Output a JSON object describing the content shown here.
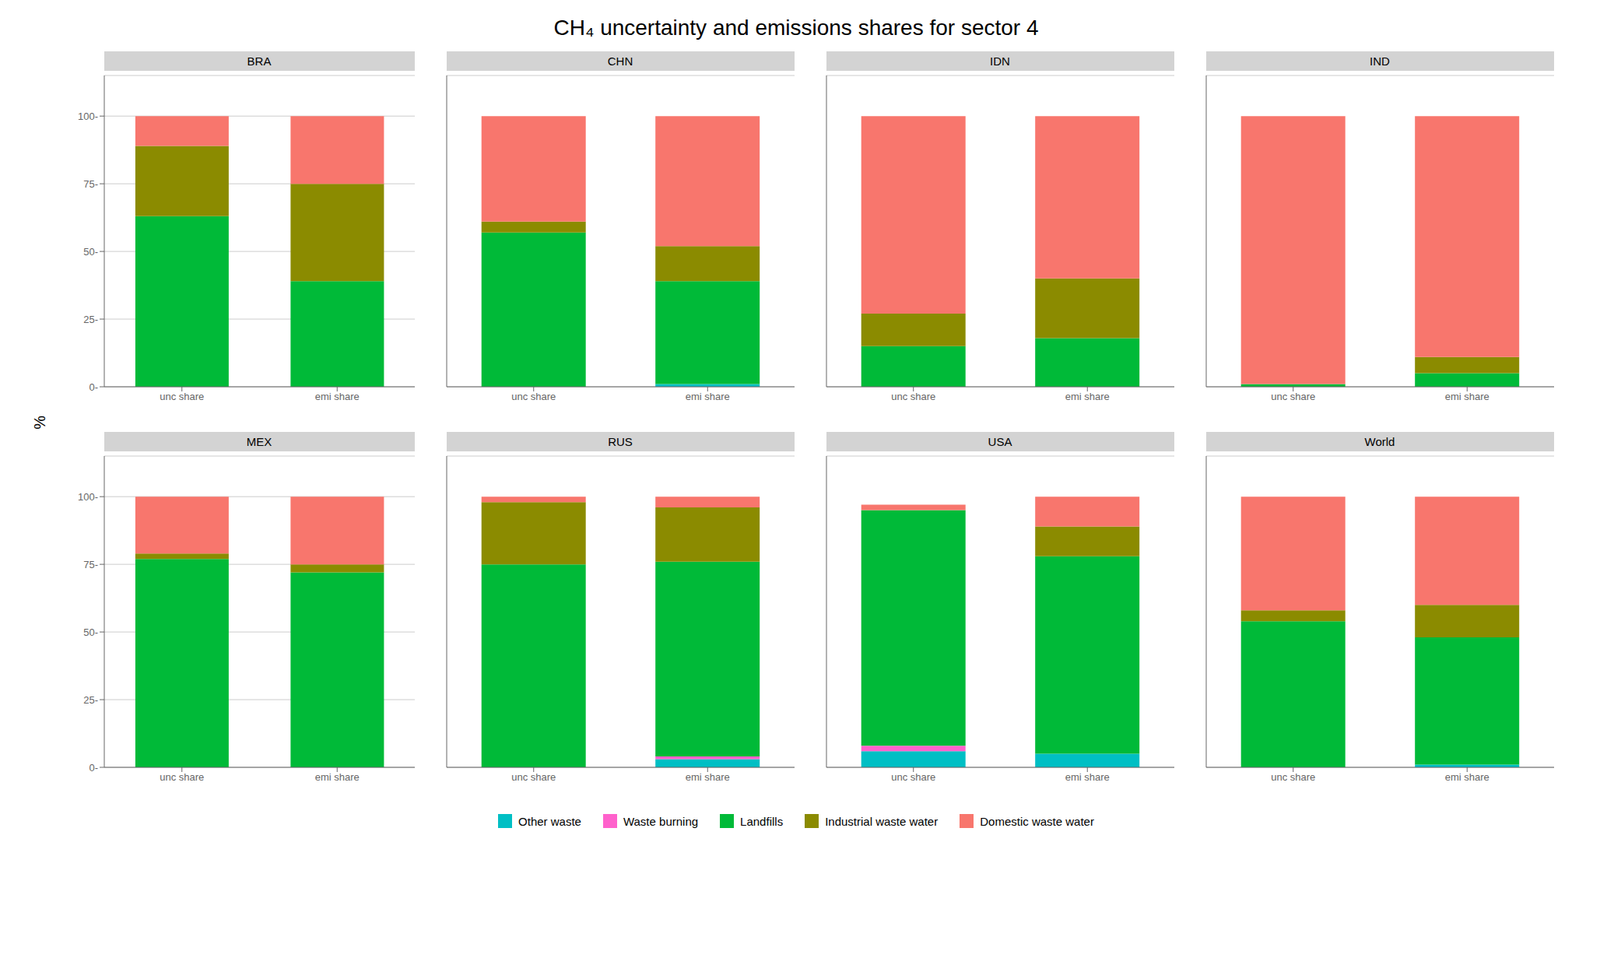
{
  "title": "CH₄ uncertainty and emissions shares for sector 4",
  "ylabel": "%",
  "chart_data": [
    {
      "type": "bar",
      "title": "BRA",
      "stacked": true,
      "grid": true,
      "categories": [
        "unc share",
        "emi share"
      ],
      "ylim": [
        0,
        115
      ],
      "yticks": [
        {
          "value": 0,
          "label": "0-"
        },
        {
          "value": 25,
          "label": "25-"
        },
        {
          "value": 50,
          "label": "50-"
        },
        {
          "value": 75,
          "label": "75-"
        },
        {
          "value": 100,
          "label": "100-"
        }
      ],
      "series": [
        {
          "name": "Other waste",
          "color": "#00BFC4",
          "values": [
            0,
            0
          ]
        },
        {
          "name": "Waste burning",
          "color": "#FF61CC",
          "values": [
            0,
            0
          ]
        },
        {
          "name": "Landfills",
          "color": "#00BA38",
          "values": [
            63,
            39
          ]
        },
        {
          "name": "Industrial waste water",
          "color": "#8B8B00",
          "values": [
            26,
            36
          ]
        },
        {
          "name": "Domestic waste water",
          "color": "#F8766D",
          "values": [
            11,
            25
          ]
        }
      ]
    },
    {
      "type": "bar",
      "title": "CHN",
      "stacked": true,
      "grid": true,
      "tick_labels": "x",
      "categories": [
        "unc share",
        "emi share"
      ],
      "ylim": [
        0,
        115
      ],
      "yticks": [
        0,
        25,
        50,
        75,
        100
      ],
      "series": [
        {
          "name": "Other waste",
          "color": "#00BFC4",
          "values": [
            0,
            1
          ]
        },
        {
          "name": "Waste burning",
          "color": "#FF61CC",
          "values": [
            0,
            0
          ]
        },
        {
          "name": "Landfills",
          "color": "#00BA38",
          "values": [
            57,
            38
          ]
        },
        {
          "name": "Industrial waste water",
          "color": "#8B8B00",
          "values": [
            4,
            13
          ]
        },
        {
          "name": "Domestic waste water",
          "color": "#F8766D",
          "values": [
            39,
            48
          ]
        }
      ]
    },
    {
      "type": "bar",
      "title": "IDN",
      "stacked": true,
      "grid": true,
      "tick_labels": "x",
      "categories": [
        "unc share",
        "emi share"
      ],
      "ylim": [
        0,
        115
      ],
      "yticks": [
        0,
        25,
        50,
        75,
        100
      ],
      "series": [
        {
          "name": "Other waste",
          "color": "#00BFC4",
          "values": [
            0,
            0
          ]
        },
        {
          "name": "Waste burning",
          "color": "#FF61CC",
          "values": [
            0,
            0
          ]
        },
        {
          "name": "Landfills",
          "color": "#00BA38",
          "values": [
            15,
            18
          ]
        },
        {
          "name": "Industrial waste water",
          "color": "#8B8B00",
          "values": [
            12,
            22
          ]
        },
        {
          "name": "Domestic waste water",
          "color": "#F8766D",
          "values": [
            73,
            60
          ]
        }
      ]
    },
    {
      "type": "bar",
      "title": "IND",
      "stacked": true,
      "grid": true,
      "tick_labels": "x",
      "categories": [
        "unc share",
        "emi share"
      ],
      "ylim": [
        0,
        115
      ],
      "yticks": [
        0,
        25,
        50,
        75,
        100
      ],
      "series": [
        {
          "name": "Other waste",
          "color": "#00BFC4",
          "values": [
            0,
            0
          ]
        },
        {
          "name": "Waste burning",
          "color": "#FF61CC",
          "values": [
            0,
            0
          ]
        },
        {
          "name": "Landfills",
          "color": "#00BA38",
          "values": [
            1,
            5
          ]
        },
        {
          "name": "Industrial waste water",
          "color": "#8B8B00",
          "values": [
            0,
            6
          ]
        },
        {
          "name": "Domestic waste water",
          "color": "#F8766D",
          "values": [
            99,
            89
          ]
        }
      ]
    },
    {
      "type": "bar",
      "title": "MEX",
      "stacked": true,
      "grid": true,
      "categories": [
        "unc share",
        "emi share"
      ],
      "ylim": [
        0,
        115
      ],
      "yticks": [
        {
          "value": 0,
          "label": "0-"
        },
        {
          "value": 25,
          "label": "25-"
        },
        {
          "value": 50,
          "label": "50-"
        },
        {
          "value": 75,
          "label": "75-"
        },
        {
          "value": 100,
          "label": "100-"
        }
      ],
      "series": [
        {
          "name": "Other waste",
          "color": "#00BFC4",
          "values": [
            0,
            0
          ]
        },
        {
          "name": "Waste burning",
          "color": "#FF61CC",
          "values": [
            0,
            0
          ]
        },
        {
          "name": "Landfills",
          "color": "#00BA38",
          "values": [
            77,
            72
          ]
        },
        {
          "name": "Industrial waste water",
          "color": "#8B8B00",
          "values": [
            2,
            3
          ]
        },
        {
          "name": "Domestic waste water",
          "color": "#F8766D",
          "values": [
            21,
            25
          ]
        }
      ]
    },
    {
      "type": "bar",
      "title": "RUS",
      "stacked": true,
      "grid": true,
      "tick_labels": "x",
      "categories": [
        "unc share",
        "emi share"
      ],
      "ylim": [
        0,
        115
      ],
      "yticks": [
        0,
        25,
        50,
        75,
        100
      ],
      "series": [
        {
          "name": "Other waste",
          "color": "#00BFC4",
          "values": [
            0,
            3
          ]
        },
        {
          "name": "Waste burning",
          "color": "#FF61CC",
          "values": [
            0,
            1
          ]
        },
        {
          "name": "Landfills",
          "color": "#00BA38",
          "values": [
            75,
            72
          ]
        },
        {
          "name": "Industrial waste water",
          "color": "#8B8B00",
          "values": [
            23,
            20
          ]
        },
        {
          "name": "Domestic waste water",
          "color": "#F8766D",
          "values": [
            2,
            4
          ]
        }
      ]
    },
    {
      "type": "bar",
      "title": "USA",
      "stacked": true,
      "grid": true,
      "tick_labels": "x",
      "categories": [
        "unc share",
        "emi share"
      ],
      "ylim": [
        0,
        115
      ],
      "yticks": [
        0,
        25,
        50,
        75,
        100
      ],
      "series": [
        {
          "name": "Other waste",
          "color": "#00BFC4",
          "values": [
            6,
            5
          ]
        },
        {
          "name": "Waste burning",
          "color": "#FF61CC",
          "values": [
            2,
            0
          ]
        },
        {
          "name": "Landfills",
          "color": "#00BA38",
          "values": [
            87,
            73
          ]
        },
        {
          "name": "Industrial waste water",
          "color": "#8B8B00",
          "values": [
            0,
            11
          ]
        },
        {
          "name": "Domestic waste water",
          "color": "#F8766D",
          "values": [
            2,
            11
          ]
        }
      ]
    },
    {
      "type": "bar",
      "title": "World",
      "stacked": true,
      "grid": true,
      "tick_labels": "x",
      "categories": [
        "unc share",
        "emi share"
      ],
      "ylim": [
        0,
        115
      ],
      "yticks": [
        0,
        25,
        50,
        75,
        100
      ],
      "series": [
        {
          "name": "Other waste",
          "color": "#00BFC4",
          "values": [
            0,
            1
          ]
        },
        {
          "name": "Waste burning",
          "color": "#FF61CC",
          "values": [
            0,
            0
          ]
        },
        {
          "name": "Landfills",
          "color": "#00BA38",
          "values": [
            54,
            47
          ]
        },
        {
          "name": "Industrial waste water",
          "color": "#8B8B00",
          "values": [
            4,
            12
          ]
        },
        {
          "name": "Domestic waste water",
          "color": "#F8766D",
          "values": [
            42,
            40
          ]
        }
      ]
    }
  ]
}
